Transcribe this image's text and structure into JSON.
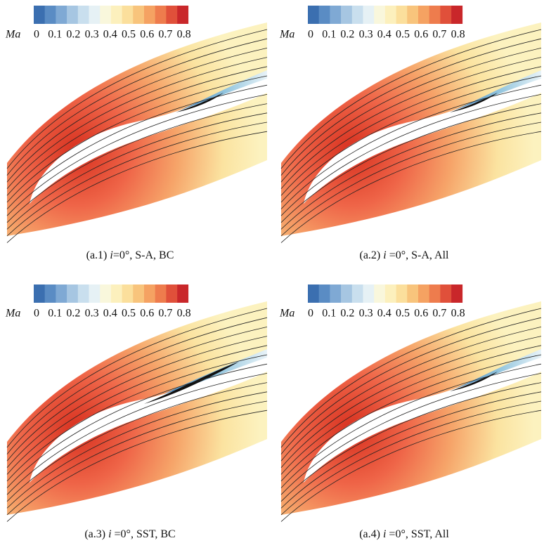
{
  "colorbar": {
    "label": "Ma",
    "ticks": [
      0,
      0.1,
      0.2,
      0.3,
      0.4,
      0.5,
      0.6,
      0.7,
      0.8
    ]
  },
  "panels": [
    {
      "caption": {
        "prefix": "(a.1) ",
        "var": "i",
        "rest": "=0°, S-A, BC"
      }
    },
    {
      "caption": {
        "prefix": "(a.2) ",
        "var": "i",
        "rest": " =0°, S-A, All"
      }
    },
    {
      "caption": {
        "prefix": "(a.3) ",
        "var": "i",
        "rest": " =0°, SST, BC"
      }
    },
    {
      "caption": {
        "prefix": "(a.4) ",
        "var": "i",
        "rest": " =0°, SST, All"
      }
    }
  ]
}
